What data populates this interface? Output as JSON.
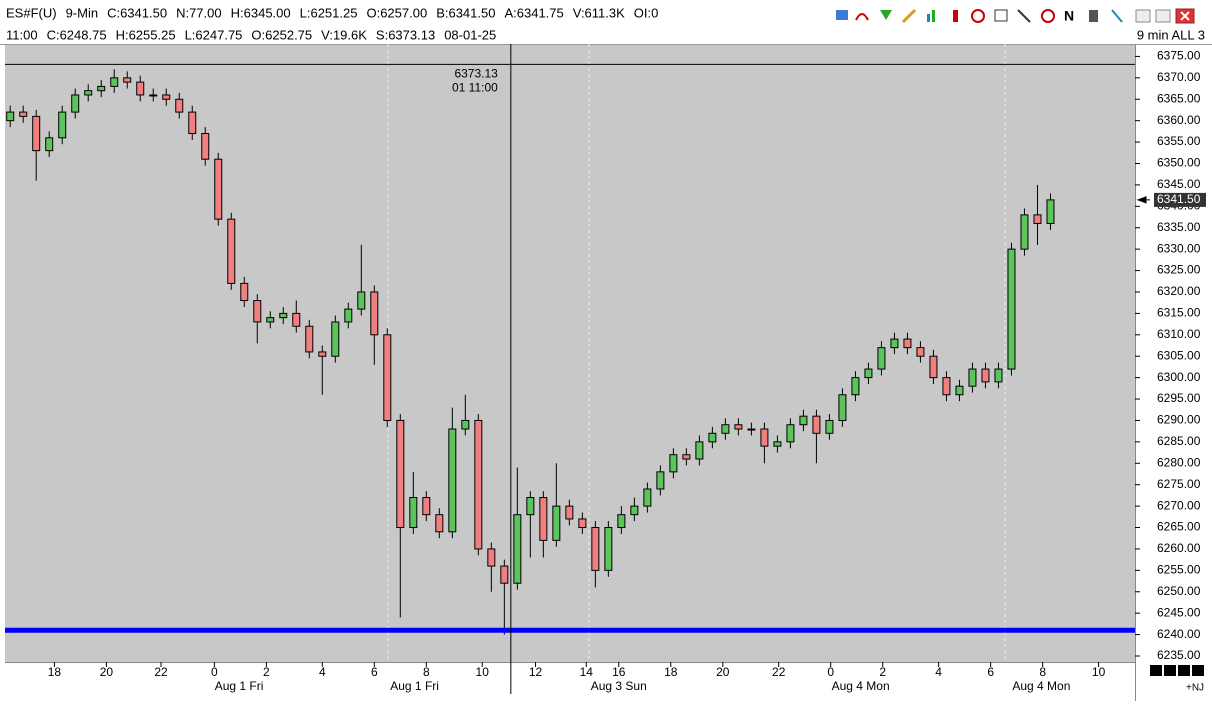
{
  "chart_data": {
    "type": "candlestick",
    "info_line1": [
      "ES#F(U)",
      "9-Min",
      "C:6341.50",
      "N:77.00",
      "H:6345.00",
      "L:6251.25",
      "O:6257.00",
      "B:6341.50",
      "A:6341.75",
      "V:611.3K",
      "OI:0"
    ],
    "info_line2": [
      "11:00",
      "C:6248.75",
      "H:6255.25",
      "L:6247.75",
      "O:6252.75",
      "V:19.6K",
      "S:6373.13",
      "08-01-25"
    ],
    "timeframe_label": "9 min ALL 3",
    "open": [
      6360,
      6362,
      6361,
      6353,
      6356,
      6362,
      6366,
      6367,
      6368,
      6370,
      6369,
      6366,
      6366,
      6365,
      6362,
      6357,
      6351,
      6337,
      6322,
      6318,
      6313,
      6314,
      6315,
      6312,
      6306,
      6305,
      6313,
      6316,
      6320,
      6310,
      6290,
      6265,
      6272,
      6268,
      6264,
      6288,
      6290,
      6260,
      6256,
      6252,
      6268,
      6272,
      6262,
      6270,
      6267,
      6265,
      6255,
      6265,
      6268,
      6270,
      6274,
      6278,
      6282,
      6281,
      6285,
      6287,
      6289,
      6288,
      6288,
      6284,
      6285,
      6289,
      6291,
      6287,
      6290,
      6296,
      6300,
      6302,
      6307,
      6309,
      6307,
      6305,
      6300,
      6296,
      6298,
      6302,
      6299,
      6302,
      6330,
      6338,
      6336
    ],
    "high": [
      6363.5,
      6363.5,
      6362.5,
      6357.5,
      6363.5,
      6367.5,
      6368.5,
      6369.5,
      6372,
      6371.5,
      6370.5,
      6367.5,
      6367.5,
      6366.5,
      6363.5,
      6358.5,
      6352.5,
      6338.5,
      6323.5,
      6319.5,
      6315.5,
      6316.5,
      6318,
      6313.5,
      6307.5,
      6314.5,
      6317.5,
      6331,
      6321.5,
      6311.5,
      6291.5,
      6278,
      6273.5,
      6269.5,
      6293,
      6296,
      6291.5,
      6261.5,
      6257.5,
      6279,
      6273.5,
      6273.5,
      6280,
      6271.5,
      6268.5,
      6266.5,
      6266.5,
      6270,
      6272,
      6275.5,
      6279.5,
      6283.5,
      6283.5,
      6286.5,
      6288.5,
      6290.5,
      6290.5,
      6289.5,
      6289.5,
      6286.5,
      6290.5,
      6292.5,
      6292.5,
      6291.5,
      6297.5,
      6301.5,
      6303.5,
      6308.5,
      6310.5,
      6310.5,
      6308.5,
      6306.5,
      6301.5,
      6299.5,
      6303.5,
      6303.5,
      6303.5,
      6331.5,
      6339.5,
      6345,
      6343
    ],
    "low": [
      6358.5,
      6359.5,
      6346,
      6351.5,
      6354.5,
      6360.5,
      6364.5,
      6365.5,
      6366.5,
      6367.5,
      6364.5,
      6364.5,
      6363.5,
      6360.5,
      6355.5,
      6349.5,
      6335.5,
      6320.5,
      6316.5,
      6308,
      6311.5,
      6312.5,
      6310.5,
      6304.5,
      6296,
      6303.5,
      6311.5,
      6314.5,
      6303,
      6288.5,
      6244,
      6263.5,
      6266.5,
      6262.5,
      6262.5,
      6286.5,
      6258.5,
      6250,
      6240,
      6250.5,
      6258,
      6258,
      6260.5,
      6265.5,
      6263.5,
      6251,
      6253.5,
      6263.5,
      6266.5,
      6268.5,
      6272.5,
      6276.5,
      6279.5,
      6279.5,
      6283.5,
      6285.5,
      6286.5,
      6286.5,
      6280,
      6282.5,
      6283.5,
      6287.5,
      6280,
      6285.5,
      6288.5,
      6294.5,
      6298.5,
      6300.5,
      6305.5,
      6305.5,
      6303.5,
      6298.5,
      6294.5,
      6294.5,
      6296.5,
      6297.5,
      6297.5,
      6300.5,
      6328.5,
      6331,
      6334.5
    ],
    "close": [
      6362,
      6361,
      6353,
      6356,
      6362,
      6366,
      6367,
      6368,
      6370,
      6369,
      6366,
      6366,
      6365,
      6362,
      6357,
      6351,
      6337,
      6322,
      6318,
      6313,
      6314,
      6315,
      6312,
      6306,
      6305,
      6313,
      6316,
      6320,
      6310,
      6290,
      6265,
      6272,
      6268,
      6264,
      6288,
      6290,
      6260,
      6256,
      6252,
      6268,
      6272,
      6262,
      6270,
      6267,
      6265,
      6255,
      6265,
      6268,
      6270,
      6274,
      6278,
      6282,
      6281,
      6285,
      6287,
      6289,
      6288,
      6288,
      6284,
      6285,
      6289,
      6291,
      6287,
      6290,
      6296,
      6300,
      6302,
      6307,
      6309,
      6307,
      6305,
      6300,
      6296,
      6298,
      6302,
      6299,
      6302,
      6330,
      6338,
      6336,
      6341.5
    ],
    "up_color": "#5cc45c",
    "down_color": "#f08080",
    "background": "#c8c8c8",
    "xlim": [
      -0.4,
      86.5
    ],
    "xticks": [
      {
        "value": 3.4,
        "label": "18"
      },
      {
        "value": 7.4,
        "label": "20"
      },
      {
        "value": 11.6,
        "label": "22"
      },
      {
        "value": 15.7,
        "label": "0"
      },
      {
        "value": 19.7,
        "label": "2"
      },
      {
        "value": 24.0,
        "label": "4"
      },
      {
        "value": 28.0,
        "label": "6"
      },
      {
        "value": 32.0,
        "label": "8"
      },
      {
        "value": 36.3,
        "label": "10"
      },
      {
        "value": 40.4,
        "label": "12"
      },
      {
        "value": 44.3,
        "label": "14"
      },
      {
        "value": 46.8,
        "label": "16"
      },
      {
        "value": 50.8,
        "label": "18"
      },
      {
        "value": 54.8,
        "label": "20"
      },
      {
        "value": 59.1,
        "label": "22"
      },
      {
        "value": 63.1,
        "label": "0"
      },
      {
        "value": 67.1,
        "label": "2"
      },
      {
        "value": 71.4,
        "label": "4"
      },
      {
        "value": 75.4,
        "label": "6"
      },
      {
        "value": 79.4,
        "label": "8"
      },
      {
        "value": 83.7,
        "label": "10"
      }
    ],
    "date_labels": [
      {
        "value": 17.6,
        "label": "Aug 1 Fri"
      },
      {
        "value": 31.1,
        "label": "Aug 1 Fri"
      },
      {
        "value": 46.8,
        "label": "Aug 3 Sun"
      },
      {
        "value": 65.4,
        "label": "Aug 4 Mon"
      },
      {
        "value": 79.3,
        "label": "Aug 4 Mon"
      }
    ],
    "ylim": [
      6233.6,
      6377.9
    ],
    "yticks": [
      {
        "value": 6235,
        "label": "6235.00"
      },
      {
        "value": 6240,
        "label": "6240.00"
      },
      {
        "value": 6245,
        "label": "6245.00"
      },
      {
        "value": 6250,
        "label": "6250.00"
      },
      {
        "value": 6255,
        "label": "6255.00"
      },
      {
        "value": 6260,
        "label": "6260.00"
      },
      {
        "value": 6265,
        "label": "6265.00"
      },
      {
        "value": 6270,
        "label": "6270.00"
      },
      {
        "value": 6275,
        "label": "6275.00"
      },
      {
        "value": 6280,
        "label": "6280.00"
      },
      {
        "value": 6285,
        "label": "6285.00"
      },
      {
        "value": 6290,
        "label": "6290.00"
      },
      {
        "value": 6295,
        "label": "6295.00"
      },
      {
        "value": 6300,
        "label": "6300.00"
      },
      {
        "value": 6305,
        "label": "6305.00"
      },
      {
        "value": 6310,
        "label": "6310.00"
      },
      {
        "value": 6315,
        "label": "6315.00"
      },
      {
        "value": 6320,
        "label": "6320.00"
      },
      {
        "value": 6325,
        "label": "6325.00"
      },
      {
        "value": 6330,
        "label": "6330.00"
      },
      {
        "value": 6335,
        "label": "6335.00"
      },
      {
        "value": 6340,
        "label": "6340.00"
      },
      {
        "value": 6345,
        "label": "6345.00"
      },
      {
        "value": 6350,
        "label": "6350.00"
      },
      {
        "value": 6355,
        "label": "6355.00"
      },
      {
        "value": 6360,
        "label": "6360.00"
      },
      {
        "value": 6365,
        "label": "6365.00"
      },
      {
        "value": 6370,
        "label": "6370.00"
      },
      {
        "value": 6375,
        "label": "6375.00"
      }
    ],
    "horizontal_line": {
      "value": 6241,
      "color": "#0000ff"
    },
    "last_price": {
      "value": 6341.5,
      "label": "6341.50"
    },
    "crosshair": {
      "x": 38.5,
      "value": 6373.13,
      "label": "6373.13",
      "time_label": "01 11:00"
    },
    "corner_label": "+NJ"
  }
}
